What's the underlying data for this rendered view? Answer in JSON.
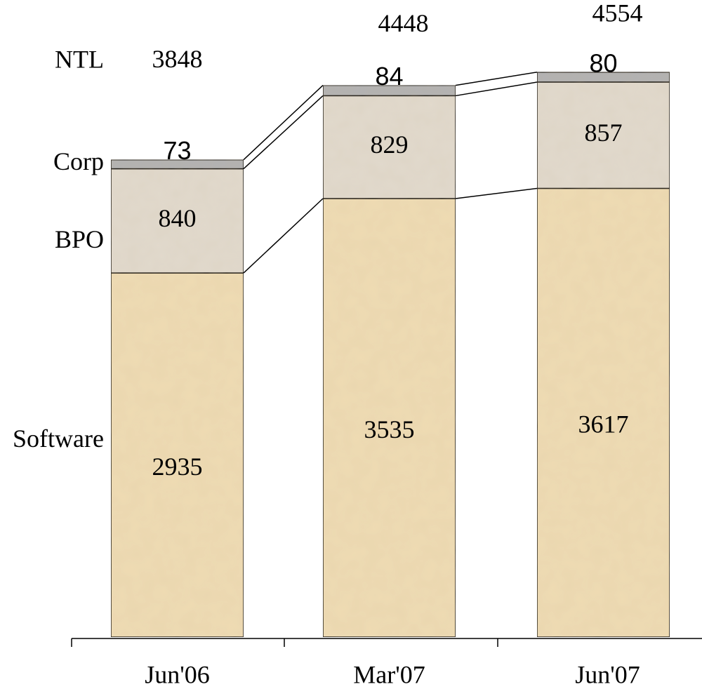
{
  "chart_data": {
    "type": "stacked_bar",
    "categories": [
      "Jun'06",
      "Mar'07",
      "Jun'07"
    ],
    "series": [
      {
        "name": "Software",
        "color": "#efdcb4",
        "values": [
          2935,
          3535,
          3617
        ]
      },
      {
        "name": "BPO",
        "color": "#e2dacd",
        "values": [
          840,
          829,
          857
        ]
      },
      {
        "name": "Corp",
        "color": "#b3b3b3",
        "values": [
          73,
          84,
          80
        ]
      }
    ],
    "totals": {
      "name": "NTL",
      "values": [
        3848,
        4448,
        4554
      ]
    }
  }
}
